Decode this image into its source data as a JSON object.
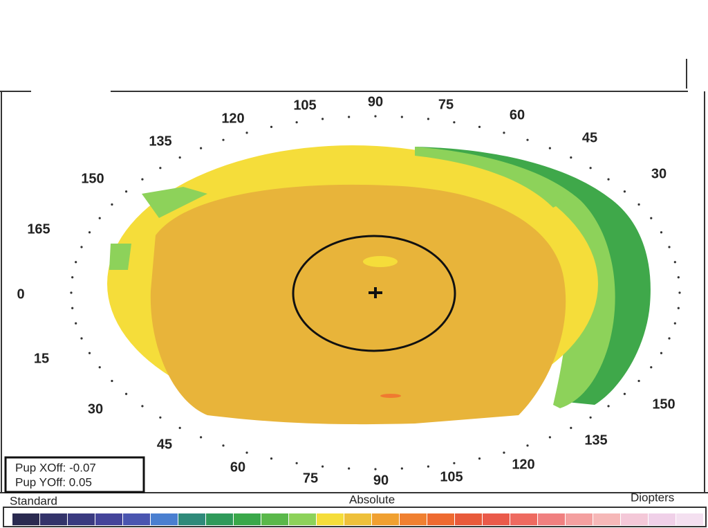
{
  "angle_labels": [
    "90",
    "105",
    "75",
    "120",
    "60",
    "135",
    "45",
    "150",
    "30",
    "165",
    "0",
    "15",
    "30",
    "45",
    "60",
    "75",
    "90",
    "105",
    "120",
    "135",
    "150"
  ],
  "pupil_offset": {
    "x": "Pup XOff: -0.07",
    "y": "Pup YOff: 0.05"
  },
  "scale": {
    "left": "Standard",
    "center": "Absolute",
    "right": "Diopters"
  }
}
